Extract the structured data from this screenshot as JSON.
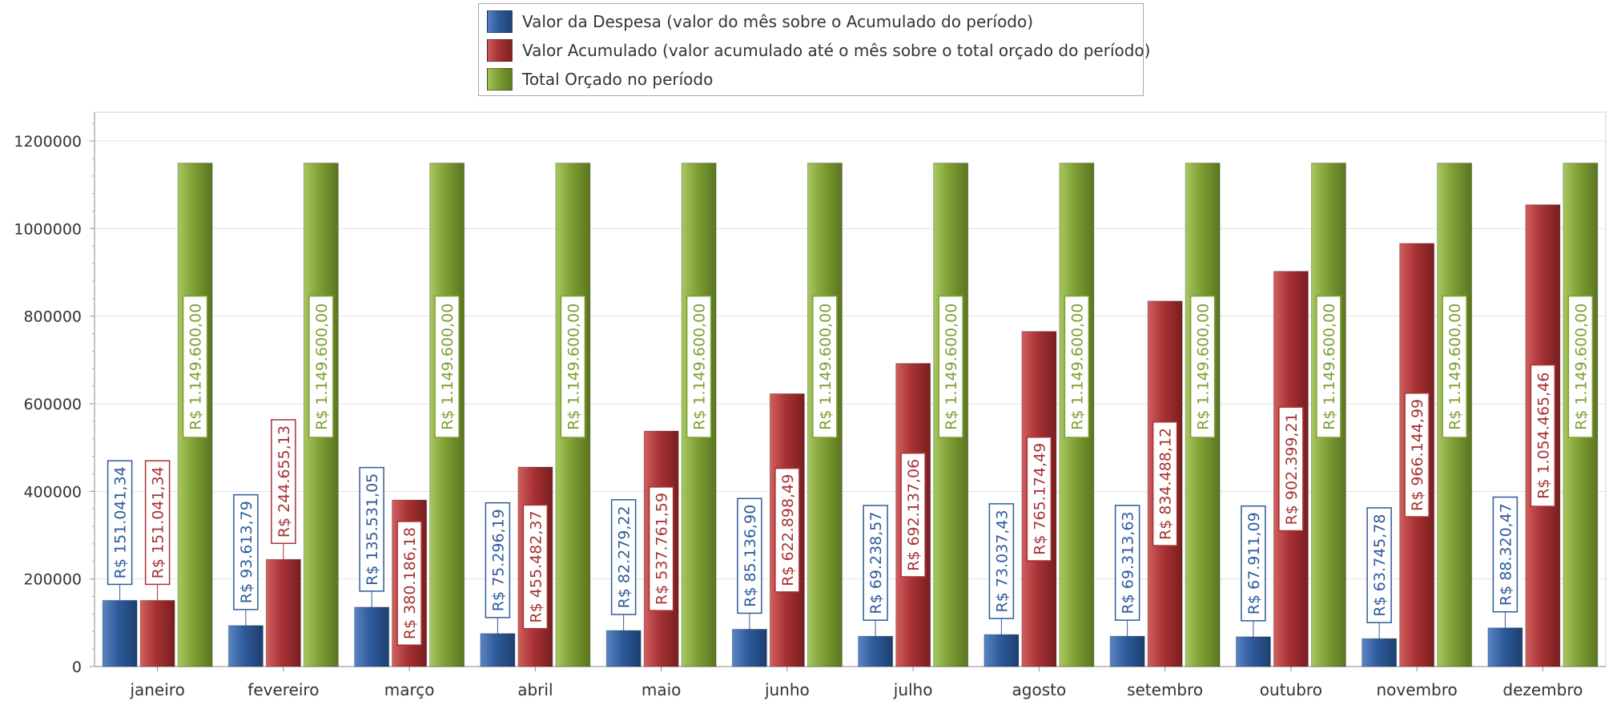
{
  "legend": {
    "items": [
      {
        "label": "Valor da Despesa (valor do mês sobre o Acumulado do período)",
        "color": "#2e5b9b"
      },
      {
        "label": "Valor Acumulado (valor acumulado até o mês sobre o total orçado do período)",
        "color": "#a83234"
      },
      {
        "label": "Total Orçado no período",
        "color": "#7e9f34"
      }
    ]
  },
  "chart_data": {
    "type": "bar",
    "categories": [
      "janeiro",
      "fevereiro",
      "março",
      "abril",
      "maio",
      "junho",
      "julho",
      "agosto",
      "setembro",
      "outubro",
      "novembro",
      "dezembro"
    ],
    "series": [
      {
        "name": "Valor da Despesa (valor do mês sobre o Acumulado do período)",
        "color": "#2e5b9b",
        "values": [
          151041.34,
          93613.79,
          135531.05,
          75296.19,
          82279.22,
          85136.9,
          69238.57,
          73037.43,
          69313.63,
          67911.09,
          63745.78,
          88320.47
        ],
        "labels": [
          "R$ 151.041,34",
          "R$ 93.613,79",
          "R$ 135.531,05",
          "R$ 75.296,19",
          "R$ 82.279,22",
          "R$ 85.136,90",
          "R$ 69.238,57",
          "R$ 73.037,43",
          "R$ 69.313,63",
          "R$ 67.911,09",
          "R$ 63.745,78",
          "R$ 88.320,47"
        ]
      },
      {
        "name": "Valor Acumulado (valor acumulado até o mês sobre o total orçado do período)",
        "color": "#a83234",
        "values": [
          151041.34,
          244655.13,
          380186.18,
          455482.37,
          537761.59,
          622898.49,
          692137.06,
          765174.49,
          834488.12,
          902399.21,
          966144.99,
          1054465.46
        ],
        "labels": [
          "R$ 151.041,34",
          "R$ 244.655,13",
          "R$ 380.186,18",
          "R$ 455.482,37",
          "R$ 537.761,59",
          "R$ 622.898,49",
          "R$ 692.137,06",
          "R$ 765.174,49",
          "R$ 834.488,12",
          "R$ 902.399,21",
          "R$ 966.144,99",
          "R$ 1.054.465,46"
        ]
      },
      {
        "name": "Total Orçado no período",
        "color": "#7e9f34",
        "values": [
          1149600,
          1149600,
          1149600,
          1149600,
          1149600,
          1149600,
          1149600,
          1149600,
          1149600,
          1149600,
          1149600,
          1149600
        ],
        "labels": [
          "R$ 1.149.600,00",
          "R$ 1.149.600,00",
          "R$ 1.149.600,00",
          "R$ 1.149.600,00",
          "R$ 1.149.600,00",
          "R$ 1.149.600,00",
          "R$ 1.149.600,00",
          "R$ 1.149.600,00",
          "R$ 1.149.600,00",
          "R$ 1.149.600,00",
          "R$ 1.149.600,00",
          "R$ 1.149.600,00"
        ]
      }
    ],
    "yticks": [
      "0",
      "200000",
      "400000",
      "600000",
      "800000",
      "1000000",
      "1200000"
    ],
    "ylim": [
      0,
      1250000
    ],
    "grid": true,
    "legend_position": "top-center"
  }
}
